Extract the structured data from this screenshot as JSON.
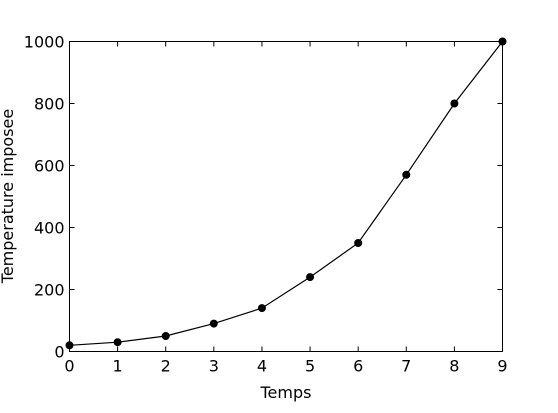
{
  "chart_data": {
    "type": "line",
    "title": "",
    "xlabel": "Temps",
    "ylabel": "Temperature imposee",
    "xlim": [
      0,
      9
    ],
    "ylim": [
      0,
      1000
    ],
    "x_ticks": [
      0,
      1,
      2,
      3,
      4,
      5,
      6,
      7,
      8,
      9
    ],
    "y_ticks": [
      0,
      200,
      400,
      600,
      800,
      1000
    ],
    "grid": false,
    "series": [
      {
        "x": [
          0,
          1,
          2,
          3,
          4,
          5,
          6,
          7,
          8,
          9
        ],
        "y": [
          20,
          30,
          50,
          90,
          140,
          240,
          350,
          570,
          800,
          1000
        ],
        "color": "#000000",
        "marker": "circle"
      }
    ]
  }
}
